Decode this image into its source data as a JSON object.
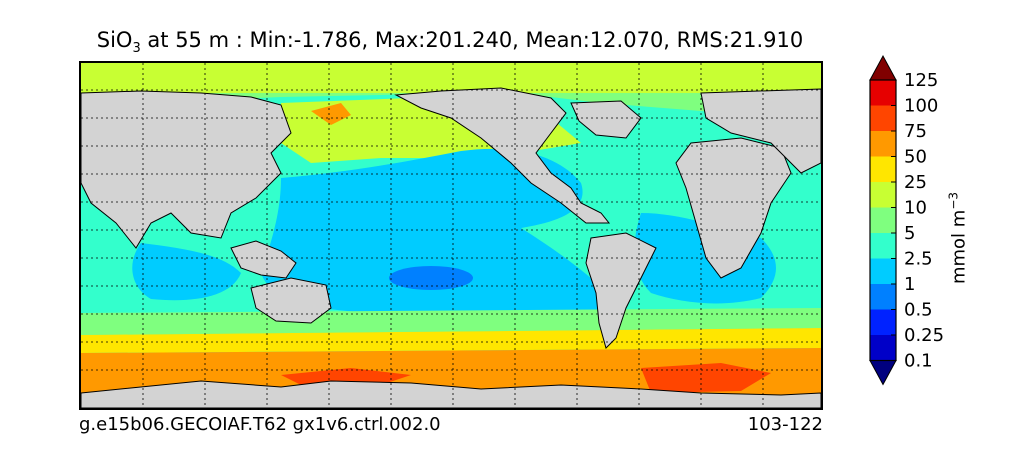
{
  "title": {
    "variable": "SiO",
    "subscript": "3",
    "rest": " at 55 m : Min:-1.786, Max:201.240, Mean:12.070, RMS:21.910"
  },
  "footer": {
    "case": "g.e15b06.GECOIAF.T62 gx1v6.ctrl.002.0",
    "years": "103-122"
  },
  "colorbar": {
    "unit_base": "mmol m",
    "unit_exp": "−3",
    "levels": [
      "0.1",
      "0.25",
      "0.5",
      "1",
      "2.5",
      "5",
      "10",
      "25",
      "50",
      "75",
      "100",
      "125"
    ],
    "colors": [
      "#00007f",
      "#0000c8",
      "#0022ff",
      "#0080ff",
      "#00ccff",
      "#33ffcc",
      "#7fff7f",
      "#c8ff33",
      "#ffe600",
      "#ff9900",
      "#ff4500",
      "#e60000",
      "#800000"
    ]
  },
  "chart_data": {
    "type": "heatmap",
    "title": "SiO3 at 55 m : Min:-1.786, Max:201.240, Mean:12.070, RMS:21.910",
    "stats": {
      "min": -1.786,
      "max": 201.24,
      "mean": 12.07,
      "rms": 21.91
    },
    "units": "mmol m^-3",
    "colorbar_levels": [
      0.1,
      0.25,
      0.5,
      1,
      2.5,
      5,
      10,
      25,
      50,
      75,
      100,
      125
    ],
    "extend": "both",
    "grid": "dotted",
    "land_color": "#d3d3d3"
  }
}
